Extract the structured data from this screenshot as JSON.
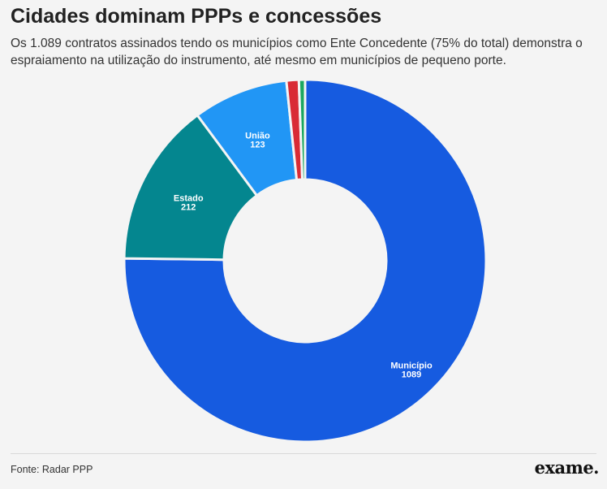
{
  "title": "Cidades dominam PPPs e concessões",
  "subtitle": "Os 1.089 contratos assinados tendo os municípios como Ente Concedente (75% do total) demonstra o espraiamento na utilização do instrumento, até mesmo em municípios de pequeno porte.",
  "source": "Fonte: Radar PPP",
  "logo": "exame.",
  "chart_data": {
    "type": "pie",
    "donut": true,
    "title": "Cidades dominam PPPs e concessões",
    "series": [
      {
        "name": "Município",
        "value": 1089,
        "color": "#165be0",
        "labeled": true
      },
      {
        "name": "Estado",
        "value": 212,
        "color": "#04868f",
        "labeled": true
      },
      {
        "name": "União",
        "value": 123,
        "color": "#2196f5",
        "labeled": true
      },
      {
        "name": "",
        "value": 16,
        "color": "#d92b35",
        "labeled": false
      },
      {
        "name": "",
        "value": 8,
        "color": "#1aa760",
        "labeled": false
      }
    ]
  }
}
